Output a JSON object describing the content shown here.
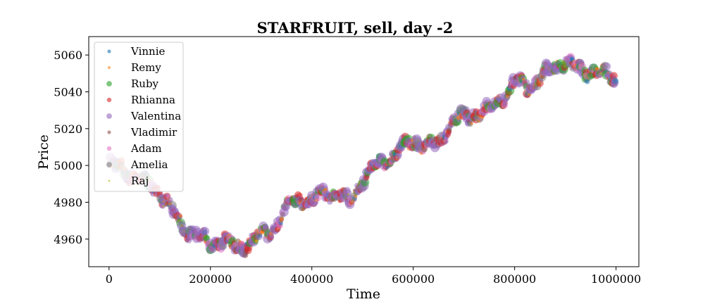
{
  "chart_data": {
    "type": "scatter",
    "title": "STARFRUIT, sell, day -2",
    "xlabel": "Time",
    "ylabel": "Price",
    "xlim": [
      -40000,
      1045000
    ],
    "ylim": [
      4945,
      5070
    ],
    "xticks": [
      0,
      200000,
      400000,
      600000,
      800000,
      1000000
    ],
    "xtick_labels": [
      "0",
      "200000",
      "400000",
      "600000",
      "800000",
      "1000000"
    ],
    "yticks": [
      4960,
      4980,
      5000,
      5020,
      5040,
      5060
    ],
    "ytick_labels": [
      "4960",
      "4980",
      "5000",
      "5020",
      "5040",
      "5060"
    ],
    "grid": false,
    "legend_position": "upper-left",
    "price_path": {
      "x": [
        0,
        25000,
        50000,
        75000,
        100000,
        125000,
        150000,
        175000,
        200000,
        225000,
        250000,
        275000,
        300000,
        325000,
        350000,
        375000,
        400000,
        425000,
        450000,
        475000,
        500000,
        525000,
        550000,
        575000,
        600000,
        625000,
        650000,
        675000,
        700000,
        725000,
        750000,
        775000,
        800000,
        825000,
        850000,
        875000,
        900000,
        925000,
        950000,
        975000,
        1000000
      ],
      "y": [
        5001,
        4998,
        4994,
        4990,
        4986,
        4975,
        4965,
        4962,
        4957,
        4960,
        4955,
        4958,
        4962,
        4966,
        4977,
        4982,
        4980,
        4986,
        4984,
        4980,
        4993,
        5000,
        5003,
        5008,
        5014,
        5010,
        5012,
        5024,
        5026,
        5028,
        5030,
        5037,
        5045,
        5043,
        5047,
        5053,
        5057,
        5052,
        5051,
        5050,
        5047
      ]
    },
    "series": [
      {
        "name": "Vinnie",
        "color": "#1f77b4",
        "marker_size": 4
      },
      {
        "name": "Remy",
        "color": "#ff7f0e",
        "marker_size": 3
      },
      {
        "name": "Ruby",
        "color": "#2ca02c",
        "marker_size": 6
      },
      {
        "name": "Rhianna",
        "color": "#d62728",
        "marker_size": 5
      },
      {
        "name": "Valentina",
        "color": "#9467bd",
        "marker_size": 6
      },
      {
        "name": "Vladimir",
        "color": "#8c564b",
        "marker_size": 4
      },
      {
        "name": "Adam",
        "color": "#e377c2",
        "marker_size": 5
      },
      {
        "name": "Amelia",
        "color": "#7f7f7f",
        "marker_size": 6
      },
      {
        "name": "Raj",
        "color": "#bcbd22",
        "marker_size": 2
      }
    ]
  }
}
